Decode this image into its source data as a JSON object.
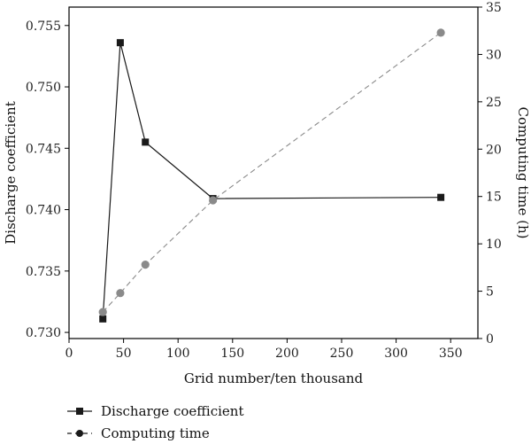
{
  "chart_data": {
    "type": "line",
    "xlabel": "Grid number/ten thousand",
    "ylabel": "Discharge coefficient",
    "y2label": "Computing time (h)",
    "xlim": [
      0,
      375
    ],
    "ylim": [
      0.7295,
      0.7565
    ],
    "y2lim": [
      0,
      35
    ],
    "x_ticks": [
      0,
      50,
      100,
      150,
      200,
      250,
      300,
      350
    ],
    "y_ticks": [
      0.73,
      0.735,
      0.74,
      0.745,
      0.75,
      0.755
    ],
    "y2_ticks": [
      0,
      5,
      10,
      15,
      20,
      25,
      30,
      35
    ],
    "legend_position": "bottom-left",
    "series": [
      {
        "name": "Discharge coefficient",
        "axis": "left",
        "marker": "square",
        "line_style": "solid",
        "color": "#1a1a1a",
        "x": [
          31,
          47,
          70,
          132,
          341
        ],
        "y": [
          0.7311,
          0.7536,
          0.7455,
          0.7409,
          0.741
        ]
      },
      {
        "name": "Computing time",
        "axis": "right",
        "marker": "circle",
        "line_style": "dashed",
        "color": "#8a8a8a",
        "x": [
          31,
          47,
          70,
          132,
          341
        ],
        "y": [
          2.8,
          4.8,
          7.8,
          14.6,
          32.3
        ]
      }
    ]
  },
  "legend": {
    "items": [
      {
        "label": "Discharge coefficient"
      },
      {
        "label": "Computing time"
      }
    ]
  }
}
